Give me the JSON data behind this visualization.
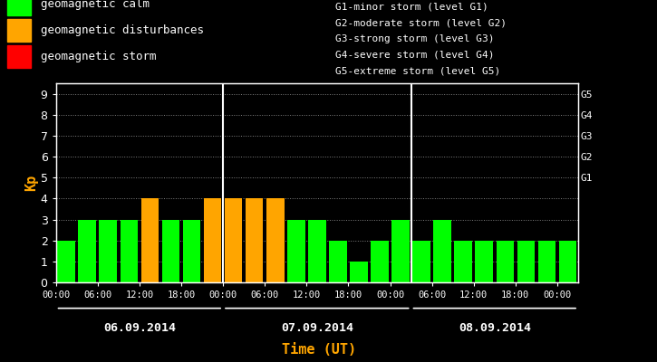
{
  "background_color": "#000000",
  "plot_bg_color": "#000000",
  "bar_width": 0.85,
  "kp_values": [
    2,
    3,
    3,
    3,
    4,
    3,
    3,
    4,
    4,
    4,
    4,
    3,
    3,
    2,
    1,
    2,
    3,
    2,
    3,
    2,
    2,
    2,
    2,
    2,
    2
  ],
  "kp_colors": [
    "#00ff00",
    "#00ff00",
    "#00ff00",
    "#00ff00",
    "#ffa500",
    "#00ff00",
    "#00ff00",
    "#ffa500",
    "#ffa500",
    "#ffa500",
    "#ffa500",
    "#00ff00",
    "#00ff00",
    "#00ff00",
    "#00ff00",
    "#00ff00",
    "#00ff00",
    "#00ff00",
    "#00ff00",
    "#00ff00",
    "#00ff00",
    "#00ff00",
    "#00ff00",
    "#00ff00",
    "#00ff00"
  ],
  "day_dividers": [
    8,
    17
  ],
  "day_labels": [
    "06.09.2014",
    "07.09.2014",
    "08.09.2014"
  ],
  "xtick_positions": [
    0,
    2,
    4,
    6,
    8,
    10,
    12,
    14,
    16,
    18,
    20,
    22,
    24
  ],
  "xtick_labels": [
    "00:00",
    "06:00",
    "12:00",
    "18:00",
    "00:00",
    "06:00",
    "12:00",
    "18:00",
    "00:00",
    "06:00",
    "12:00",
    "18:00",
    "00:00"
  ],
  "ylim_max": 9.5,
  "yticks": [
    0,
    1,
    2,
    3,
    4,
    5,
    6,
    7,
    8,
    9
  ],
  "right_tick_y": [
    5,
    6,
    7,
    8,
    9
  ],
  "right_tick_labels": [
    "G1",
    "G2",
    "G3",
    "G4",
    "G5"
  ],
  "ylabel": "Kp",
  "xlabel": "Time (UT)",
  "xlabel_color": "#ffa500",
  "ylabel_color": "#ffa500",
  "text_color": "#ffffff",
  "grid_color": "#ffffff",
  "axis_color": "#ffffff",
  "legend_items": [
    {
      "label": "geomagnetic calm",
      "color": "#00ff00"
    },
    {
      "label": "geomagnetic disturbances",
      "color": "#ffa500"
    },
    {
      "label": "geomagnetic storm",
      "color": "#ff0000"
    }
  ],
  "right_legend_lines": [
    "G1-minor storm (level G1)",
    "G2-moderate storm (level G2)",
    "G3-strong storm (level G3)",
    "G4-severe storm (level G4)",
    "G5-extreme storm (level G5)"
  ]
}
